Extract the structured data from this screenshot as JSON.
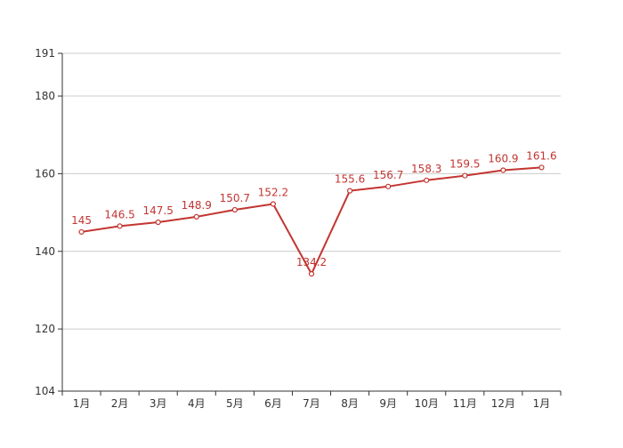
{
  "chart_data": {
    "type": "line",
    "title": "",
    "xlabel": "",
    "ylabel": "",
    "categories": [
      "1月",
      "2月",
      "3月",
      "4月",
      "5月",
      "6月",
      "7月",
      "8月",
      "9月",
      "10月",
      "11月",
      "12月",
      "1月"
    ],
    "series": [
      {
        "values": [
          145,
          146.5,
          147.5,
          148.9,
          150.7,
          152.2,
          134.2,
          155.6,
          156.7,
          158.3,
          159.5,
          160.9,
          161.6
        ],
        "value_labels": [
          "145",
          "146.5",
          "147.5",
          "148.9",
          "150.7",
          "152.2",
          "134.2",
          "155.6",
          "156.7",
          "158.3",
          "159.5",
          "160.9",
          "161.6"
        ],
        "color": "#c23531"
      }
    ],
    "ylim": [
      104,
      191
    ],
    "yticks": [
      104,
      120,
      140,
      160,
      180,
      191
    ],
    "ytick_labels": [
      "104",
      "120",
      "140",
      "160",
      "180",
      "191"
    ],
    "grid": true,
    "legend": "none"
  }
}
